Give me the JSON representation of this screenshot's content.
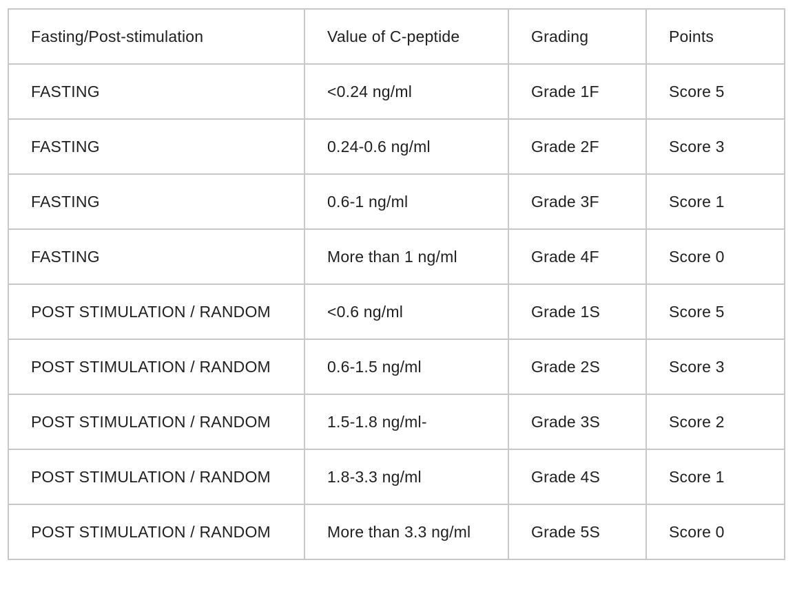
{
  "table": {
    "headers": [
      "Fasting/Post-stimulation",
      "Value of C-peptide",
      "Grading",
      "Points"
    ],
    "rows": [
      [
        "FASTING",
        "<0.24 ng/ml",
        "Grade 1F",
        "Score 5"
      ],
      [
        "FASTING",
        "0.24-0.6 ng/ml",
        "Grade 2F",
        "Score 3"
      ],
      [
        "FASTING",
        "0.6-1 ng/ml",
        "Grade 3F",
        "Score 1"
      ],
      [
        "FASTING",
        "More than 1 ng/ml",
        "Grade 4F",
        "Score 0"
      ],
      [
        "POST STIMULATION / RANDOM",
        "<0.6 ng/ml",
        "Grade 1S",
        "Score 5"
      ],
      [
        "POST STIMULATION / RANDOM",
        "0.6-1.5 ng/ml",
        "Grade 2S",
        "Score 3"
      ],
      [
        "POST STIMULATION / RANDOM",
        "1.5-1.8 ng/ml-",
        "Grade 3S",
        "Score 2"
      ],
      [
        "POST STIMULATION / RANDOM",
        "1.8-3.3 ng/ml",
        "Grade 4S",
        "Score 1"
      ],
      [
        "POST STIMULATION / RANDOM",
        "More than 3.3 ng/ml",
        "Grade 5S",
        "Score 0"
      ]
    ]
  }
}
